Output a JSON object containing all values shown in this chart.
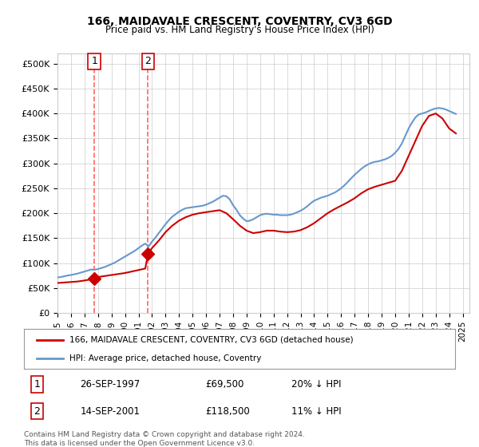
{
  "title": "166, MAIDAVALE CRESCENT, COVENTRY, CV3 6GD",
  "subtitle": "Price paid vs. HM Land Registry's House Price Index (HPI)",
  "legend_line1": "166, MAIDAVALE CRESCENT, COVENTRY, CV3 6GD (detached house)",
  "legend_line2": "HPI: Average price, detached house, Coventry",
  "footer": "Contains HM Land Registry data © Crown copyright and database right 2024.\nThis data is licensed under the Open Government Licence v3.0.",
  "sale1_label": "1",
  "sale1_date": "26-SEP-1997",
  "sale1_price": "£69,500",
  "sale1_hpi": "20% ↓ HPI",
  "sale1_year": 1997.73,
  "sale1_value": 69500,
  "sale2_label": "2",
  "sale2_date": "14-SEP-2001",
  "sale2_price": "£118,500",
  "sale2_hpi": "11% ↓ HPI",
  "sale2_year": 2001.7,
  "sale2_value": 118500,
  "hpi_color": "#6699cc",
  "price_color": "#cc0000",
  "marker_color": "#cc0000",
  "dashed_line_color": "#ff6666",
  "background_color": "#ffffff",
  "grid_color": "#cccccc",
  "ylim": [
    0,
    520000
  ],
  "yticks": [
    0,
    50000,
    100000,
    150000,
    200000,
    250000,
    300000,
    350000,
    400000,
    450000,
    500000
  ],
  "xlim_start": 1995.0,
  "xlim_end": 2025.5,
  "hpi_years": [
    1995,
    1995.25,
    1995.5,
    1995.75,
    1996,
    1996.25,
    1996.5,
    1996.75,
    1997,
    1997.25,
    1997.5,
    1997.75,
    1998,
    1998.25,
    1998.5,
    1998.75,
    1999,
    1999.25,
    1999.5,
    1999.75,
    2000,
    2000.25,
    2000.5,
    2000.75,
    2001,
    2001.25,
    2001.5,
    2001.75,
    2002,
    2002.25,
    2002.5,
    2002.75,
    2003,
    2003.25,
    2003.5,
    2003.75,
    2004,
    2004.25,
    2004.5,
    2004.75,
    2005,
    2005.25,
    2005.5,
    2005.75,
    2006,
    2006.25,
    2006.5,
    2006.75,
    2007,
    2007.25,
    2007.5,
    2007.75,
    2008,
    2008.25,
    2008.5,
    2008.75,
    2009,
    2009.25,
    2009.5,
    2009.75,
    2010,
    2010.25,
    2010.5,
    2010.75,
    2011,
    2011.25,
    2011.5,
    2011.75,
    2012,
    2012.25,
    2012.5,
    2012.75,
    2013,
    2013.25,
    2013.5,
    2013.75,
    2014,
    2014.25,
    2014.5,
    2014.75,
    2015,
    2015.25,
    2015.5,
    2015.75,
    2016,
    2016.25,
    2016.5,
    2016.75,
    2017,
    2017.25,
    2017.5,
    2017.75,
    2018,
    2018.25,
    2018.5,
    2018.75,
    2019,
    2019.25,
    2019.5,
    2019.75,
    2020,
    2020.25,
    2020.5,
    2020.75,
    2021,
    2021.25,
    2021.5,
    2021.75,
    2022,
    2022.25,
    2022.5,
    2022.75,
    2023,
    2023.25,
    2023.5,
    2023.75,
    2024,
    2024.25,
    2024.5
  ],
  "hpi_values": [
    71000,
    72000,
    73500,
    75000,
    76000,
    77500,
    79000,
    81000,
    83000,
    85000,
    87000,
    86500,
    88000,
    90000,
    92000,
    95000,
    98000,
    101000,
    105000,
    109000,
    113000,
    117000,
    121000,
    125000,
    130000,
    135000,
    139000,
    133500,
    143000,
    151000,
    160000,
    169000,
    178000,
    186000,
    193000,
    198000,
    203000,
    207000,
    210000,
    211000,
    212000,
    213000,
    214000,
    215000,
    217000,
    220000,
    223000,
    227000,
    231000,
    235000,
    234000,
    228000,
    216000,
    207000,
    196000,
    189000,
    184000,
    185000,
    188000,
    192000,
    196000,
    198000,
    199000,
    198000,
    197000,
    197000,
    196000,
    196000,
    196000,
    197000,
    199000,
    202000,
    205000,
    209000,
    214000,
    220000,
    225000,
    228000,
    231000,
    233000,
    235000,
    238000,
    241000,
    245000,
    250000,
    256000,
    263000,
    270000,
    277000,
    283000,
    289000,
    294000,
    298000,
    301000,
    303000,
    304000,
    306000,
    308000,
    311000,
    315000,
    321000,
    329000,
    340000,
    355000,
    370000,
    382000,
    392000,
    398000,
    400000,
    402000,
    405000,
    408000,
    410000,
    411000,
    410000,
    408000,
    405000,
    402000,
    399000
  ],
  "price_years": [
    1995,
    1995.5,
    1996,
    1996.5,
    1997,
    1997.5,
    1997.73,
    1998,
    1998.5,
    1999,
    1999.5,
    2000,
    2000.5,
    2001,
    2001.5,
    2001.7,
    2002,
    2002.5,
    2003,
    2003.5,
    2004,
    2004.5,
    2005,
    2005.5,
    2006,
    2006.5,
    2007,
    2007.5,
    2008,
    2008.5,
    2009,
    2009.5,
    2010,
    2010.5,
    2011,
    2011.5,
    2012,
    2012.5,
    2013,
    2013.5,
    2014,
    2014.5,
    2015,
    2015.5,
    2016,
    2016.5,
    2017,
    2017.5,
    2018,
    2018.5,
    2019,
    2019.5,
    2020,
    2020.5,
    2021,
    2021.5,
    2022,
    2022.5,
    2023,
    2023.5,
    2024,
    2024.5
  ],
  "price_values": [
    60000,
    61000,
    62000,
    63000,
    65000,
    67500,
    69500,
    72000,
    74000,
    76000,
    78000,
    80000,
    83000,
    86000,
    89000,
    118500,
    130000,
    145000,
    162000,
    175000,
    185000,
    192000,
    197000,
    200000,
    202000,
    204000,
    206000,
    200000,
    188000,
    175000,
    165000,
    160000,
    162000,
    165000,
    165000,
    163000,
    162000,
    163000,
    166000,
    172000,
    180000,
    190000,
    200000,
    208000,
    215000,
    222000,
    230000,
    240000,
    248000,
    253000,
    257000,
    261000,
    265000,
    285000,
    315000,
    345000,
    375000,
    395000,
    400000,
    390000,
    370000,
    360000
  ]
}
